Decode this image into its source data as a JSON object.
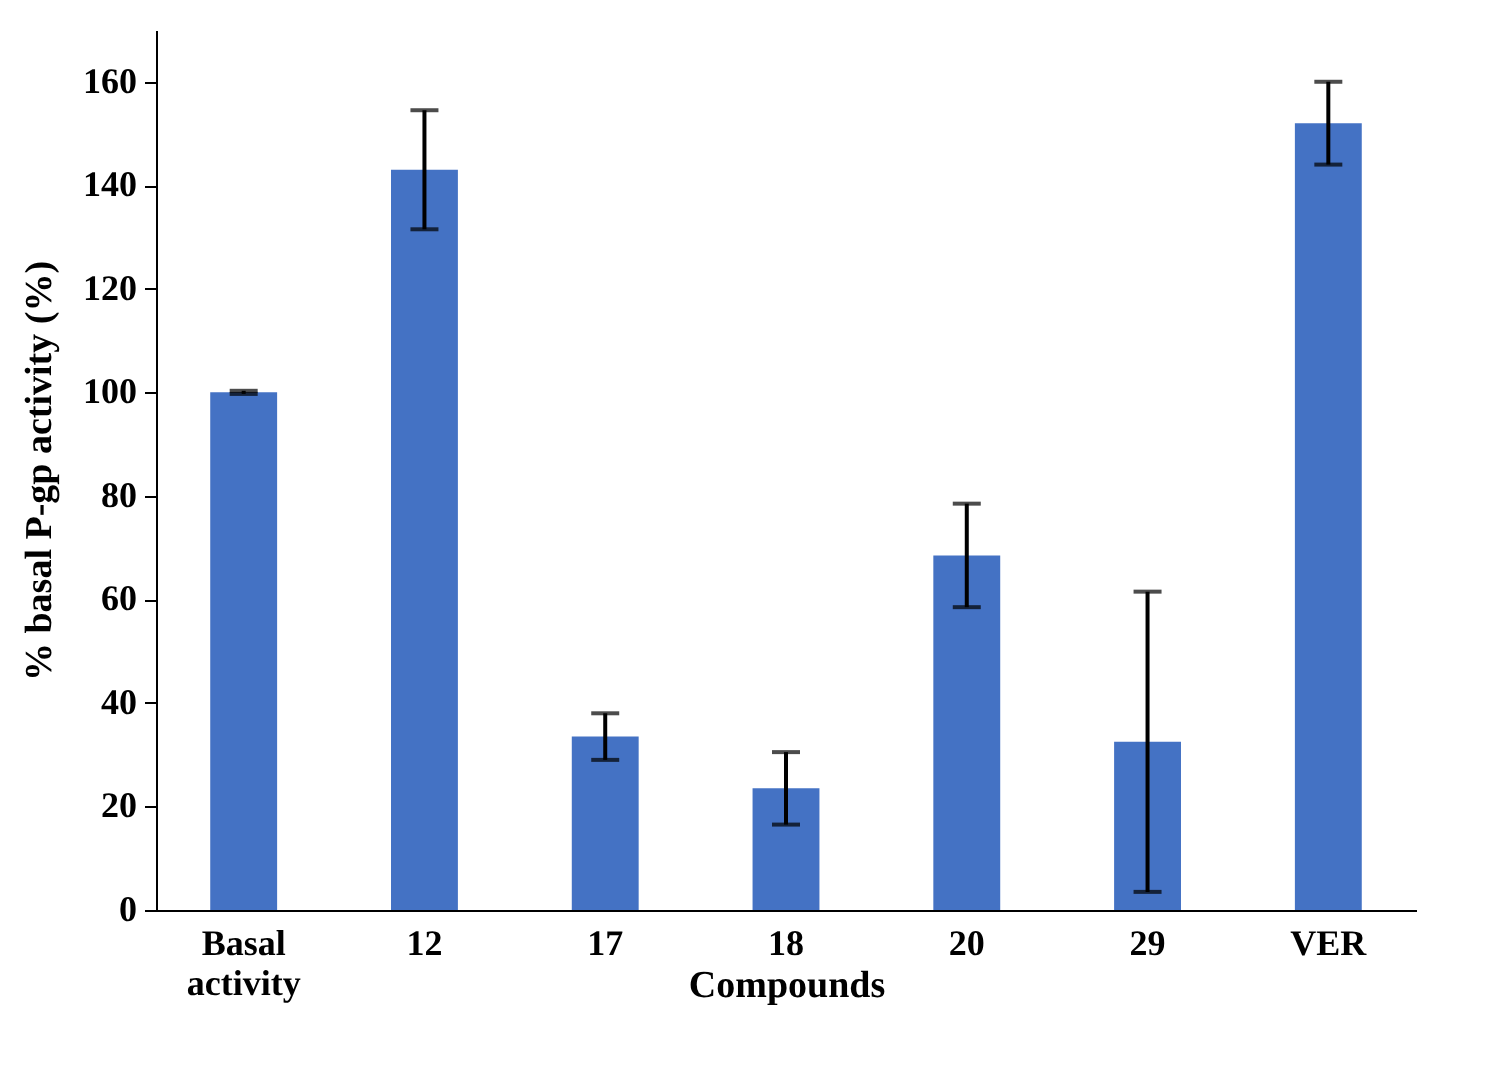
{
  "chart_data": {
    "type": "bar",
    "xlabel": "Compounds",
    "ylabel": "% basal P-gp activity (%)",
    "categories": [
      "Basal activity",
      "12",
      "17",
      "18",
      "20",
      "29",
      "VER"
    ],
    "values": [
      100,
      143,
      33.5,
      23.5,
      68.5,
      32.5,
      152
    ],
    "errors": [
      0.3,
      11.5,
      4.5,
      7,
      10,
      29,
      8
    ],
    "color": "#4472c4",
    "ylim": [
      0,
      170
    ],
    "yticks": [
      0,
      20,
      40,
      60,
      80,
      100,
      120,
      140,
      160
    ],
    "grid": false
  }
}
